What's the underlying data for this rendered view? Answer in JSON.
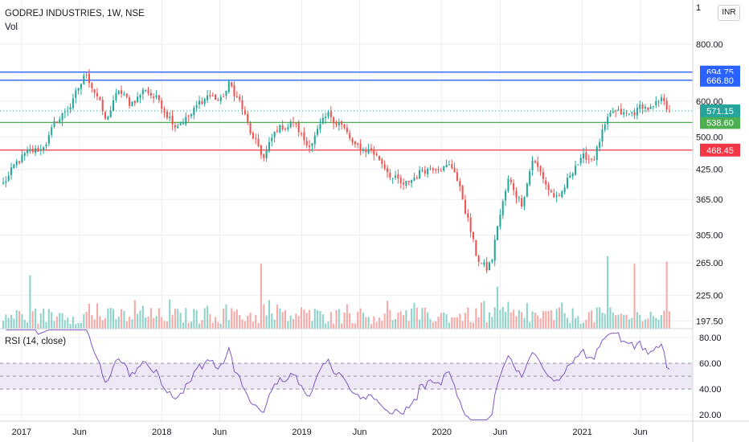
{
  "header": {
    "symbol": "GODREJ INDUSTRIES, 1W, NSE",
    "vol_label": "Vol",
    "currency": "INR",
    "rsi_label": "RSI (14, close)"
  },
  "colors": {
    "up": "#26a69a",
    "down": "#ef5350",
    "up_vol": "#8ed3ca",
    "down_vol": "#f7a9a7",
    "hline_blue": "#2962ff",
    "hline_green": "#4caf50",
    "hline_red": "#f23645",
    "rsi_line": "#7e57c2",
    "rsi_band": "#ede7f6",
    "grid": "#eceef2",
    "axis_text": "#131722"
  },
  "chart_data": [
    {
      "type": "candlestick",
      "title": "GODREJ INDUSTRIES, 1W, NSE",
      "scale": "log",
      "ylim": [
        190,
        1000
      ],
      "y_ticks": [
        "800.00",
        "600.00",
        "500.00",
        "425.00",
        "365.00",
        "305.00",
        "265.00",
        "225.00",
        "197.50"
      ],
      "y_tick_values": [
        800,
        600,
        500,
        425,
        365,
        305,
        265,
        225,
        197.5
      ],
      "x_ticks": [
        "2017",
        "Jun",
        "2018",
        "Jun",
        "2019",
        "Jun",
        "2020",
        "Jun",
        "2021",
        "Jun"
      ],
      "x_tick_dates": [
        "2017-01-01",
        "2017-06-01",
        "2018-01-01",
        "2018-06-01",
        "2019-01-01",
        "2019-06-01",
        "2020-01-01",
        "2020-06-01",
        "2021-01-01",
        "2021-06-01"
      ],
      "date_range": [
        "2016-11-14",
        "2021-08-16"
      ],
      "price_path": [
        [
          "2016-11-14",
          395
        ],
        [
          "2017-01-02",
          450
        ],
        [
          "2017-02-20",
          470
        ],
        [
          "2017-04-03",
          540
        ],
        [
          "2017-05-15",
          600
        ],
        [
          "2017-06-19",
          690
        ],
        [
          "2017-07-17",
          620
        ],
        [
          "2017-08-07",
          540
        ],
        [
          "2017-09-11",
          630
        ],
        [
          "2017-10-09",
          590
        ],
        [
          "2017-11-20",
          640
        ],
        [
          "2017-12-25",
          600
        ],
        [
          "2018-02-05",
          540
        ],
        [
          "2018-03-19",
          560
        ],
        [
          "2018-04-30",
          620
        ],
        [
          "2018-06-04",
          600
        ],
        [
          "2018-06-25",
          650
        ],
        [
          "2018-07-23",
          600
        ],
        [
          "2018-08-27",
          490
        ],
        [
          "2018-09-24",
          450
        ],
        [
          "2018-10-29",
          520
        ],
        [
          "2018-12-10",
          540
        ],
        [
          "2019-01-14",
          480
        ],
        [
          "2019-03-11",
          550
        ],
        [
          "2019-04-08",
          545
        ],
        [
          "2019-05-20",
          470
        ],
        [
          "2019-07-01",
          470
        ],
        [
          "2019-08-19",
          420
        ],
        [
          "2019-09-23",
          385
        ],
        [
          "2019-11-11",
          425
        ],
        [
          "2019-12-23",
          440
        ],
        [
          "2020-02-03",
          425
        ],
        [
          "2020-03-09",
          330
        ],
        [
          "2020-03-30",
          275
        ],
        [
          "2020-04-27",
          255
        ],
        [
          "2020-05-11",
          270
        ],
        [
          "2020-05-25",
          320
        ],
        [
          "2020-06-22",
          400
        ],
        [
          "2020-07-27",
          360
        ],
        [
          "2020-08-24",
          450
        ],
        [
          "2020-10-05",
          385
        ],
        [
          "2020-11-02",
          360
        ],
        [
          "2020-12-14",
          440
        ],
        [
          "2021-02-01",
          455
        ],
        [
          "2021-02-22",
          510
        ],
        [
          "2021-03-22",
          560
        ],
        [
          "2021-05-03",
          555
        ],
        [
          "2021-06-07",
          585
        ],
        [
          "2021-07-05",
          575
        ],
        [
          "2021-08-02",
          600
        ],
        [
          "2021-08-16",
          571
        ]
      ],
      "volume_spikes": [
        [
          "2017-01-23",
          0.7
        ],
        [
          "2018-09-17",
          0.85
        ],
        [
          "2020-05-25",
          0.55
        ],
        [
          "2021-03-08",
          0.95
        ],
        [
          "2021-05-17",
          0.85
        ],
        [
          "2021-08-09",
          0.88
        ]
      ],
      "hlines": [
        {
          "label": "694.75",
          "value": 694.75,
          "color": "blue"
        },
        {
          "label": "666.80",
          "value": 666.8,
          "color": "blue"
        },
        {
          "label": "538.60",
          "value": 538.6,
          "color": "green"
        },
        {
          "label": "468.45",
          "value": 468.45,
          "color": "red"
        }
      ],
      "last_price": {
        "label": "571.15",
        "value": 571.15
      }
    },
    {
      "type": "line",
      "title": "RSI (14, close)",
      "ylim": [
        15,
        87
      ],
      "y_ticks": [
        "80.00",
        "60.00",
        "40.00",
        "20.00"
      ],
      "y_tick_values": [
        80,
        60,
        40,
        20
      ],
      "band": [
        40,
        60
      ],
      "last_value": 60
    }
  ]
}
